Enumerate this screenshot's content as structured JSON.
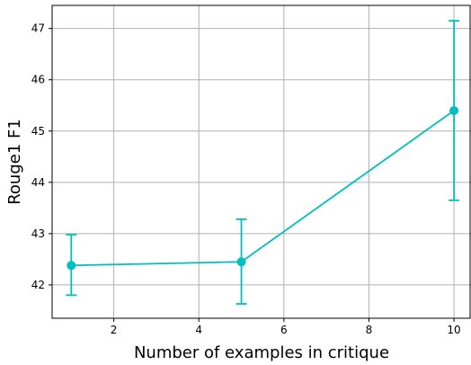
{
  "chart_data": {
    "type": "line",
    "title": "",
    "xlabel": "Number of examples in critique",
    "ylabel": "Rouge1 F1",
    "xlim": [
      0.55,
      10.4
    ],
    "ylim": [
      41.35,
      47.45
    ],
    "x_ticks": [
      2,
      4,
      6,
      8,
      10
    ],
    "y_ticks": [
      42,
      43,
      44,
      45,
      46,
      47
    ],
    "grid": true,
    "legend": "none",
    "color": "#00bfbf",
    "series": [
      {
        "x": [
          1,
          5,
          10
        ],
        "y": [
          42.38,
          42.45,
          45.4
        ],
        "err_low": [
          41.8,
          41.63,
          43.65
        ],
        "err_high": [
          42.98,
          43.28,
          47.15
        ]
      }
    ]
  }
}
